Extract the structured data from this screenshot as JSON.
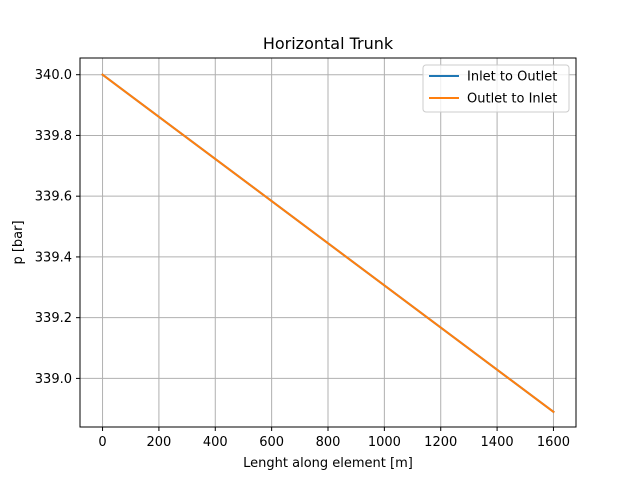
{
  "chart_data": {
    "type": "line",
    "title": "Horizontal Trunk",
    "xlabel": "Lenght along element [m]",
    "ylabel": "p [bar]",
    "xlim": [
      -80,
      1680
    ],
    "ylim": [
      338.84,
      340.055
    ],
    "xticks": [
      0,
      200,
      400,
      600,
      800,
      1000,
      1200,
      1400,
      1600
    ],
    "xtick_labels": [
      "0",
      "200",
      "400",
      "600",
      "800",
      "1000",
      "1200",
      "1400",
      "1600"
    ],
    "yticks": [
      339.0,
      339.2,
      339.4,
      339.6,
      339.8,
      340.0
    ],
    "ytick_labels": [
      "339.0",
      "339.2",
      "339.4",
      "339.6",
      "339.8",
      "340.0"
    ],
    "grid": true,
    "legend_position": "top-right",
    "series": [
      {
        "name": "Inlet to Outlet",
        "color": "#1f77b4",
        "x": [
          0,
          1600
        ],
        "y": [
          340.0,
          338.89
        ]
      },
      {
        "name": "Outlet to Inlet",
        "color": "#ff7f0e",
        "x": [
          0,
          1600
        ],
        "y": [
          340.0,
          338.89
        ]
      }
    ]
  }
}
